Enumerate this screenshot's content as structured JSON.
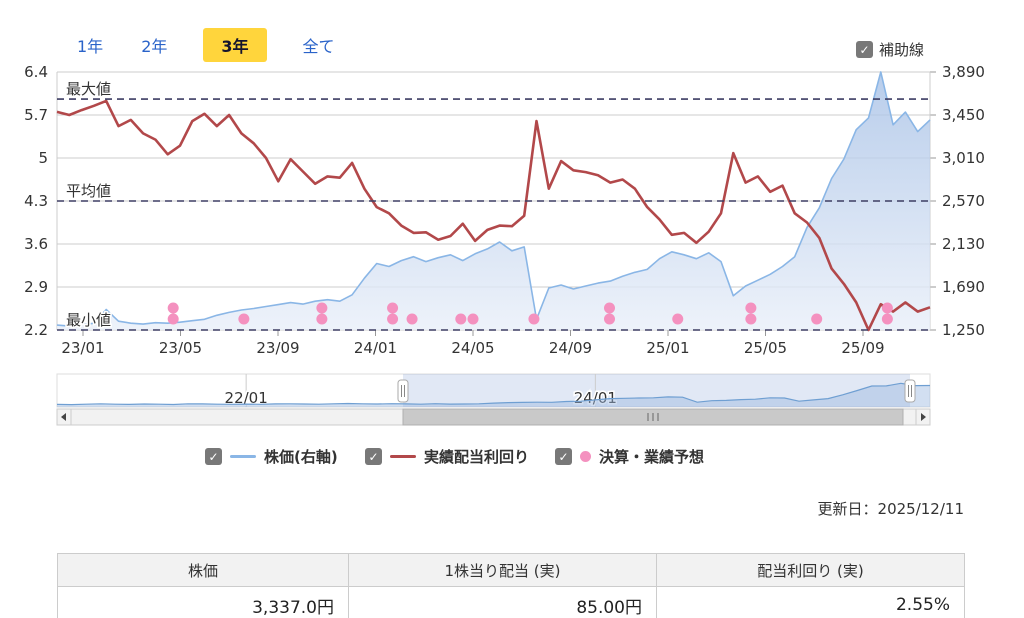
{
  "tabs": {
    "items": [
      {
        "label": "1年",
        "active": false
      },
      {
        "label": "2年",
        "active": false
      },
      {
        "label": "3年",
        "active": true
      },
      {
        "label": "全て",
        "active": false
      }
    ]
  },
  "aux_checkbox": {
    "label": "補助線",
    "checked": true
  },
  "chart_data": {
    "type": "line",
    "left_axis": {
      "title": "実績配当利回り(%)",
      "ticks": [
        "6.4",
        "5.7",
        "5",
        "4.3",
        "3.6",
        "2.9",
        "2.2"
      ],
      "min": 2.2,
      "max": 6.4
    },
    "right_axis": {
      "title": "株価(円)",
      "ticks": [
        "3,890",
        "3,450",
        "3,010",
        "2,570",
        "2,130",
        "1,690",
        "1,250"
      ],
      "min": 1250,
      "max": 3890
    },
    "x_axis": {
      "ticks": [
        "23/01",
        "23/05",
        "23/09",
        "24/01",
        "24/05",
        "24/09",
        "25/01",
        "25/05",
        "25/09"
      ]
    },
    "reference_lines": [
      {
        "label": "最大値",
        "value": 5.96
      },
      {
        "label": "平均値",
        "value": 4.3
      },
      {
        "label": "最小値",
        "value": 2.2
      }
    ],
    "series": [
      {
        "name": "株価(右軸)",
        "axis": "right",
        "color": "#8ab6e6",
        "values": [
          1300,
          1290,
          1300,
          1320,
          1460,
          1340,
          1320,
          1310,
          1325,
          1320,
          1330,
          1345,
          1360,
          1400,
          1430,
          1455,
          1470,
          1490,
          1510,
          1530,
          1515,
          1545,
          1560,
          1545,
          1610,
          1780,
          1930,
          1900,
          1960,
          2000,
          1950,
          1990,
          2020,
          1960,
          2030,
          2080,
          2150,
          2060,
          2100,
          1360,
          1680,
          1710,
          1670,
          1700,
          1730,
          1750,
          1800,
          1840,
          1870,
          1980,
          2050,
          2020,
          1980,
          2040,
          1950,
          1600,
          1700,
          1760,
          1820,
          1900,
          2000,
          2300,
          2500,
          2800,
          3000,
          3300,
          3420,
          3890,
          3350,
          3480,
          3280,
          3400
        ]
      },
      {
        "name": "実績配当利回り",
        "axis": "left",
        "color": "#b2484a",
        "values": [
          5.75,
          5.7,
          5.78,
          5.85,
          5.93,
          5.52,
          5.62,
          5.4,
          5.3,
          5.06,
          5.2,
          5.6,
          5.72,
          5.52,
          5.7,
          5.4,
          5.24,
          5.0,
          4.62,
          4.98,
          4.78,
          4.58,
          4.7,
          4.68,
          4.92,
          4.5,
          4.2,
          4.1,
          3.9,
          3.78,
          3.79,
          3.67,
          3.73,
          3.93,
          3.65,
          3.83,
          3.9,
          3.89,
          4.06,
          5.6,
          4.5,
          4.95,
          4.8,
          4.77,
          4.72,
          4.6,
          4.65,
          4.5,
          4.2,
          4.0,
          3.75,
          3.78,
          3.62,
          3.8,
          4.1,
          5.08,
          4.6,
          4.7,
          4.45,
          4.55,
          4.1,
          3.95,
          3.7,
          3.2,
          2.95,
          2.65,
          2.2,
          2.62,
          2.5,
          2.65,
          2.5,
          2.57
        ]
      },
      {
        "name": "決算・業績予想",
        "type": "scatter",
        "color": "#f491bf",
        "events": [
          {
            "month_offset": 3.7,
            "count": 2
          },
          {
            "month_offset": 6.6,
            "count": 1
          },
          {
            "month_offset": 9.8,
            "count": 2
          },
          {
            "month_offset": 12.7,
            "count": 2
          },
          {
            "month_offset": 13.5,
            "count": 1
          },
          {
            "month_offset": 15.5,
            "count": 1
          },
          {
            "month_offset": 16.0,
            "count": 1
          },
          {
            "month_offset": 18.5,
            "count": 1
          },
          {
            "month_offset": 21.6,
            "count": 2
          },
          {
            "month_offset": 24.4,
            "count": 1
          },
          {
            "month_offset": 27.4,
            "count": 2
          },
          {
            "month_offset": 30.1,
            "count": 1
          },
          {
            "month_offset": 33.0,
            "count": 2
          }
        ]
      }
    ],
    "navigator": {
      "labels": [
        {
          "text": "22/01",
          "index": 13
        },
        {
          "text": "24/01",
          "index": 37
        }
      ],
      "values": [
        1280,
        1260,
        1300,
        1340,
        1300,
        1280,
        1320,
        1300,
        1270,
        1350,
        1330,
        1300,
        1290,
        1310,
        1290,
        1330,
        1350,
        1320,
        1300,
        1340,
        1380,
        1350,
        1320,
        1360,
        1330,
        1300,
        1360,
        1310,
        1320,
        1350,
        1420,
        1480,
        1500,
        1520,
        1510,
        1600,
        1640,
        1780,
        1930,
        1960,
        1990,
        2010,
        2120,
        2080,
        1520,
        1690,
        1730,
        1810,
        1860,
        2020,
        1990,
        1640,
        1780,
        1930,
        2350,
        2830,
        3330,
        3340,
        3630,
        3380,
        3390
      ]
    },
    "colors": {
      "price_line": "#8ab6e6",
      "yield_line": "#b2484a",
      "event_dot": "#f491bf",
      "reference_dash": "#3d3d63",
      "grid": "#cccccc",
      "selection": "#5a82c8"
    }
  },
  "legend": {
    "items": [
      {
        "label": "株価(右軸)",
        "checked": true,
        "swatch": "line-blue"
      },
      {
        "label": "実績配当利回り",
        "checked": true,
        "swatch": "line-red"
      },
      {
        "label": "決算・業績予想",
        "checked": true,
        "swatch": "dot-pink"
      }
    ]
  },
  "updated": {
    "label": "更新日：2025/12/11"
  },
  "table": {
    "headers": [
      "株価",
      "1株当り配当 (実)",
      "配当利回り (実)"
    ],
    "values": [
      "3,337.0円",
      "85.00円",
      "2.55%"
    ]
  }
}
